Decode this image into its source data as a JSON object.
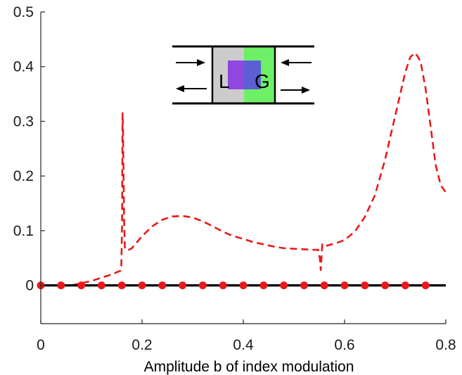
{
  "chart_data": {
    "type": "line",
    "xlabel": "Amplitude b of index modulation",
    "ylabel": "",
    "title": "",
    "xlim": [
      0,
      0.8
    ],
    "ylim": [
      -0.07,
      0.5
    ],
    "xticks": [
      0,
      0.2,
      0.4,
      0.6,
      0.8
    ],
    "xtick_labels": [
      "0",
      "0.2",
      "0.4",
      "0.6",
      "0.8"
    ],
    "yticks": [
      0,
      0.1,
      0.2,
      0.3,
      0.4,
      0.5
    ],
    "ytick_labels": [
      "0",
      "0.1",
      "0.2",
      "0.3",
      "0.4",
      "0.5"
    ],
    "grid": false,
    "series": [
      {
        "style": "dashed",
        "color": "#e8191a",
        "x": [
          0.06,
          0.08,
          0.1,
          0.12,
          0.14,
          0.158,
          0.159,
          0.1605,
          0.1615,
          0.1625,
          0.1635,
          0.1645,
          0.166,
          0.168,
          0.172,
          0.18,
          0.2,
          0.22,
          0.24,
          0.26,
          0.28,
          0.3,
          0.32,
          0.34,
          0.36,
          0.38,
          0.4,
          0.41,
          0.42,
          0.44,
          0.46,
          0.48,
          0.5,
          0.52,
          0.54,
          0.548,
          0.551,
          0.553,
          0.555,
          0.556,
          0.558,
          0.562,
          0.57,
          0.58,
          0.6,
          0.62,
          0.64,
          0.66,
          0.68,
          0.7,
          0.72,
          0.73,
          0.74,
          0.75,
          0.76,
          0.77,
          0.78,
          0.79,
          0.8
        ],
        "y": [
          0.0,
          0.004,
          0.008,
          0.014,
          0.02,
          0.027,
          0.03,
          0.11,
          0.315,
          0.28,
          0.2,
          0.12,
          0.07,
          0.065,
          0.064,
          0.068,
          0.09,
          0.108,
          0.12,
          0.126,
          0.127,
          0.124,
          0.117,
          0.108,
          0.098,
          0.09,
          0.085,
          0.082,
          0.079,
          0.075,
          0.071,
          0.068,
          0.067,
          0.066,
          0.065,
          0.065,
          0.05,
          0.028,
          0.06,
          0.075,
          0.073,
          0.072,
          0.074,
          0.076,
          0.083,
          0.098,
          0.125,
          0.165,
          0.23,
          0.31,
          0.39,
          0.418,
          0.425,
          0.41,
          0.36,
          0.29,
          0.22,
          0.183,
          0.17
        ]
      },
      {
        "style": "solid",
        "color": "#000000",
        "x": [
          0,
          0.8
        ],
        "y": [
          0,
          0
        ]
      },
      {
        "style": "markers",
        "color": "#e8191a",
        "x": [
          0,
          0.04,
          0.08,
          0.12,
          0.16,
          0.2,
          0.24,
          0.28,
          0.32,
          0.36,
          0.4,
          0.44,
          0.48,
          0.52,
          0.56,
          0.6,
          0.64,
          0.68,
          0.72,
          0.76
        ],
        "y": [
          0,
          0,
          0,
          0,
          0,
          0,
          0,
          0,
          0,
          0,
          0,
          0,
          0,
          0,
          0,
          0,
          0,
          0,
          0,
          0
        ]
      }
    ],
    "inset": {
      "left_letter": "L",
      "right_letter": "G",
      "left_color": "#cccccc",
      "right_color": "#6ef066",
      "overlap_colors": [
        "#8f47e0",
        "#5b5fd4"
      ]
    }
  }
}
